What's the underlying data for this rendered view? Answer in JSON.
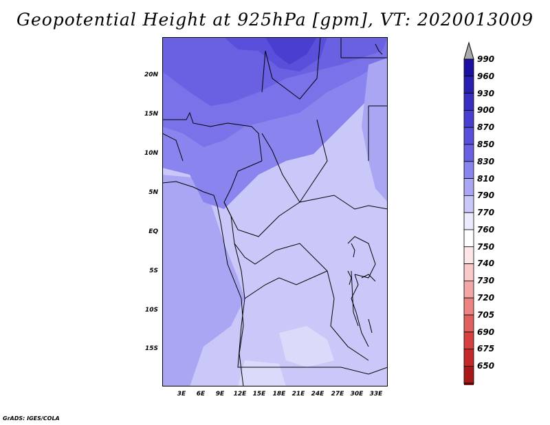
{
  "title": "Geopotential Height at 925hPa [gpm], VT: 2020013009",
  "credit": "GrADS: IGES/COLA",
  "lat_labels": [
    "20N",
    "15N",
    "10N",
    "5N",
    "EQ",
    "5S",
    "10S",
    "15S"
  ],
  "lon_labels": [
    "3E",
    "6E",
    "9E",
    "12E",
    "15E",
    "18E",
    "21E",
    "24E",
    "27E",
    "30E",
    "33E"
  ],
  "colorbar": {
    "labels": [
      "990",
      "960",
      "930",
      "900",
      "870",
      "850",
      "830",
      "810",
      "790",
      "770",
      "760",
      "750",
      "740",
      "730",
      "720",
      "705",
      "690",
      "675",
      "650"
    ],
    "colors": [
      "#1a0fa0",
      "#2a1eb0",
      "#3a2ec0",
      "#4a3ed0",
      "#5a4fda",
      "#6a60e2",
      "#8a84ee",
      "#aaa6f4",
      "#cac8f8",
      "#ecebfd",
      "#ffffff",
      "#fde6e6",
      "#f9c8c8",
      "#f3a6a6",
      "#ec8484",
      "#e06060",
      "#d64040",
      "#c42828",
      "#a81818",
      "#8a1010"
    ]
  }
}
